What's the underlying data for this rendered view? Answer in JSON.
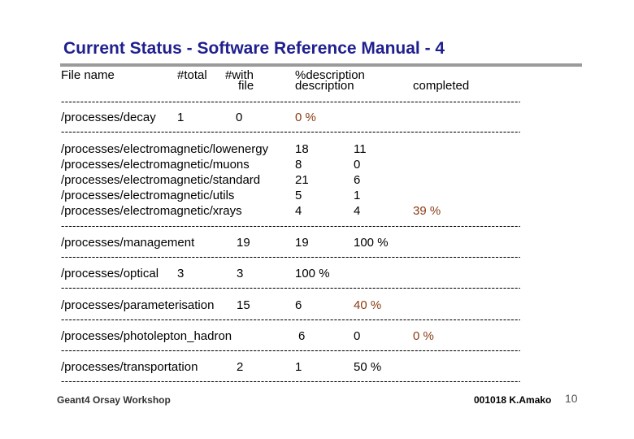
{
  "title": "Current Status - Software Reference Manual - 4",
  "header": {
    "file_name": "File name",
    "total": "#total",
    "with_line1": "#with",
    "with_line2": "file",
    "desc_line1": "%description",
    "desc_line2": "description",
    "completed": "completed"
  },
  "dash_line": "----------------------------------------------------------------------------------------------------------------------------------------",
  "rows": [
    {
      "name": "/processes/decay",
      "total": "1",
      "with_file": "0",
      "pct": "0 %"
    },
    {
      "name": "/processes/electromagnetic/lowenergy",
      "with_file": "18",
      "desc": "11"
    },
    {
      "name": "/processes/electromagnetic/muons",
      "with_file": "8",
      "desc": "0"
    },
    {
      "name": "/processes/electromagnetic/standard",
      "with_file": "21",
      "desc": "6"
    },
    {
      "name": "/processes/electromagnetic/utils",
      "with_file": "5",
      "desc": "1"
    },
    {
      "name": "/processes/electromagnetic/xrays",
      "with_file": "4",
      "desc": "4",
      "pct": "39 %"
    },
    {
      "name": "/processes/management",
      "total": "19",
      "with_file": "19",
      "pct": "100 %"
    },
    {
      "name": "/processes/optical",
      "total": "3",
      "with_file": "3",
      "pct": "100 %"
    },
    {
      "name": "/processes/parameterisation",
      "total": "15",
      "with_file": "6",
      "pct": "40 %"
    },
    {
      "name": "/processes/photolepton_hadron",
      "with_file": "6",
      "desc": "0",
      "pct": "0 %"
    },
    {
      "name": "/processes/transportation",
      "total": "2",
      "with_file": "1",
      "pct": "50 %"
    }
  ],
  "footer": {
    "left": "Geant4 Orsay Workshop",
    "right": "001018 K.Amako",
    "page": "10"
  },
  "colors": {
    "title": "#1f1f8f",
    "highlight": "#8a3b12",
    "rule": "#9a9a9a"
  }
}
